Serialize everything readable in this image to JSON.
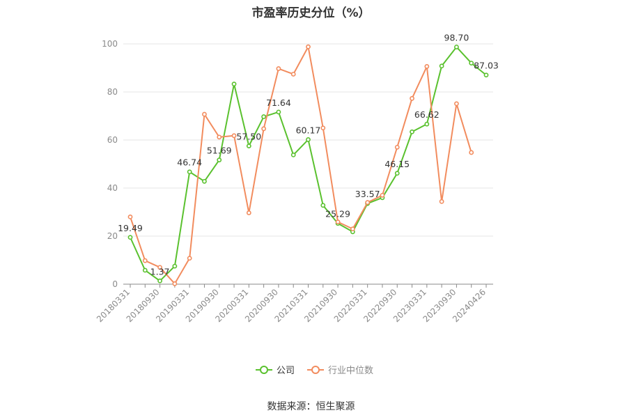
{
  "chart_data": {
    "type": "line",
    "title": "市盈率历史分位（%）",
    "source": "数据来源：恒生聚源",
    "ylim": [
      0,
      100
    ],
    "yticks": [
      0,
      20,
      40,
      60,
      80,
      100
    ],
    "grid": true,
    "legend_position": "bottom",
    "x_tick_labels": [
      "20180331",
      "20180930",
      "20190331",
      "20190930",
      "20200331",
      "20200930",
      "20210331",
      "20210930",
      "20220331",
      "20220930",
      "20230331",
      "20230930",
      "20240426"
    ],
    "x": [
      "20180331",
      "20180630",
      "20180930",
      "20181231",
      "20190331",
      "20190630",
      "20190930",
      "20191231",
      "20200331",
      "20200630",
      "20200930",
      "20201231",
      "20210331",
      "20210630",
      "20210930",
      "20211231",
      "20220331",
      "20220630",
      "20220930",
      "20221231",
      "20230331",
      "20230630",
      "20230930",
      "20231231",
      "20240426"
    ],
    "series": [
      {
        "name": "公司",
        "color": "#5ac12e",
        "values": [
          19.49,
          5.8,
          1.37,
          7.5,
          46.74,
          42.8,
          51.69,
          83.3,
          57.5,
          69.7,
          71.64,
          53.8,
          60.17,
          32.8,
          25.29,
          21.8,
          33.57,
          36.0,
          46.15,
          63.4,
          66.62,
          90.8,
          98.7,
          92.0,
          87.03
        ],
        "labels": {
          "0": "19.49",
          "2": "1.37",
          "4": "46.74",
          "6": "51.69",
          "8": "57.50",
          "10": "71.64",
          "12": "60.17",
          "14": "25.29",
          "16": "33.57",
          "18": "46.15",
          "20": "66.62",
          "22": "98.70",
          "24": "87.03"
        }
      },
      {
        "name": "行业中位数",
        "color": "#f28c5e",
        "values": [
          28.0,
          9.8,
          7.0,
          0.2,
          10.8,
          70.7,
          61.2,
          61.8,
          29.7,
          64.7,
          89.7,
          87.4,
          98.8,
          65.0,
          25.9,
          23.0,
          34.0,
          37.0,
          57.0,
          77.3,
          90.6,
          34.4,
          75.1,
          54.8,
          null
        ]
      }
    ]
  }
}
